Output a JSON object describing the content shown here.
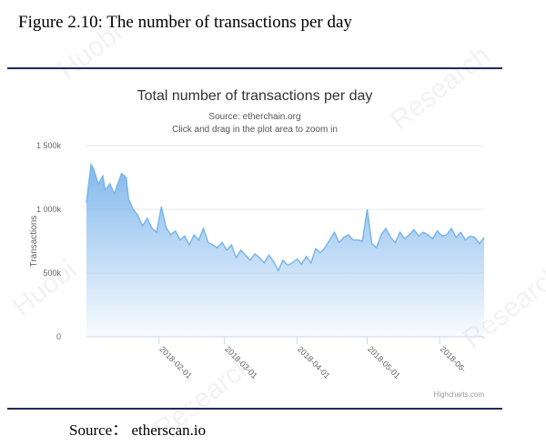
{
  "figure": {
    "caption": "Figure 2.10: The number of transactions per day",
    "source": "Source：  etherscan.io"
  },
  "chart_data": {
    "type": "area",
    "title": "Total number of transactions per day",
    "subtitle_source": "Source: etherchain.org",
    "subtitle_hint": "Click and drag in the plot area to zoom in",
    "ylabel": "Transactions",
    "xlabel": "",
    "ylim": [
      0,
      1500000
    ],
    "y_ticks": [
      0,
      500000,
      1000000,
      1500000
    ],
    "y_tick_labels": [
      "0",
      "500k",
      "1 000k",
      "1 500k"
    ],
    "x_range": [
      "2018-01-01",
      "2018-06-20"
    ],
    "x_ticks": [
      "2018-02-01",
      "2018-03-01",
      "2018-04-01",
      "2018-05-01",
      "2018-06-01"
    ],
    "x_tick_labels": [
      "2018-02-01",
      "2018-03-01",
      "2018-04-01",
      "2018-05-01",
      "2018-06-"
    ],
    "credits": "Highcharts.com",
    "grid": true,
    "legend": "none",
    "series": [
      {
        "color": "#7cb5ec",
        "x": [
          "2018-01-01",
          "2018-01-03",
          "2018-01-04",
          "2018-01-06",
          "2018-01-08",
          "2018-01-09",
          "2018-01-11",
          "2018-01-13",
          "2018-01-14",
          "2018-01-16",
          "2018-01-18",
          "2018-01-19",
          "2018-01-21",
          "2018-01-23",
          "2018-01-25",
          "2018-01-27",
          "2018-01-29",
          "2018-01-31",
          "2018-02-02",
          "2018-02-04",
          "2018-02-06",
          "2018-02-08",
          "2018-02-10",
          "2018-02-12",
          "2018-02-14",
          "2018-02-16",
          "2018-02-18",
          "2018-02-20",
          "2018-02-22",
          "2018-02-24",
          "2018-02-26",
          "2018-02-28",
          "2018-03-02",
          "2018-03-04",
          "2018-03-06",
          "2018-03-08",
          "2018-03-10",
          "2018-03-12",
          "2018-03-14",
          "2018-03-16",
          "2018-03-18",
          "2018-03-20",
          "2018-03-22",
          "2018-03-24",
          "2018-03-26",
          "2018-03-28",
          "2018-03-30",
          "2018-04-01",
          "2018-04-03",
          "2018-04-05",
          "2018-04-07",
          "2018-04-09",
          "2018-04-11",
          "2018-04-13",
          "2018-04-15",
          "2018-04-17",
          "2018-04-19",
          "2018-04-21",
          "2018-04-23",
          "2018-04-25",
          "2018-04-27",
          "2018-04-29",
          "2018-05-01",
          "2018-05-03",
          "2018-05-05",
          "2018-05-07",
          "2018-05-09",
          "2018-05-11",
          "2018-05-13",
          "2018-05-15",
          "2018-05-17",
          "2018-05-19",
          "2018-05-21",
          "2018-05-23",
          "2018-05-25",
          "2018-05-27",
          "2018-05-29",
          "2018-05-31",
          "2018-06-02",
          "2018-06-04",
          "2018-06-06",
          "2018-06-08",
          "2018-06-10",
          "2018-06-12",
          "2018-06-14",
          "2018-06-16",
          "2018-06-18",
          "2018-06-20"
        ],
        "y": [
          1050000,
          1350000,
          1320000,
          1200000,
          1260000,
          1150000,
          1200000,
          1120000,
          1180000,
          1280000,
          1250000,
          1080000,
          1000000,
          950000,
          870000,
          930000,
          850000,
          820000,
          1020000,
          860000,
          800000,
          830000,
          760000,
          790000,
          720000,
          800000,
          760000,
          850000,
          740000,
          720000,
          700000,
          740000,
          680000,
          720000,
          620000,
          680000,
          640000,
          600000,
          650000,
          620000,
          580000,
          640000,
          590000,
          520000,
          600000,
          560000,
          580000,
          610000,
          570000,
          630000,
          580000,
          690000,
          660000,
          700000,
          760000,
          820000,
          740000,
          780000,
          800000,
          760000,
          760000,
          750000,
          1000000,
          730000,
          700000,
          800000,
          850000,
          780000,
          740000,
          820000,
          770000,
          800000,
          840000,
          790000,
          820000,
          800000,
          770000,
          830000,
          790000,
          800000,
          850000,
          780000,
          820000,
          760000,
          790000,
          780000,
          730000,
          780000
        ]
      }
    ]
  }
}
